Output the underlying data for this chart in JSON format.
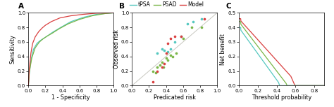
{
  "panel_a": {
    "label": "A",
    "xlabel": "1 - Specificity",
    "ylabel": "Sensitivity",
    "xlim": [
      0.0,
      1.0
    ],
    "ylim": [
      0.0,
      1.0
    ],
    "xticks": [
      0.0,
      0.2,
      0.4,
      0.6,
      0.8,
      1.0
    ],
    "yticks": [
      0.0,
      0.2,
      0.4,
      0.6,
      0.8,
      1.0
    ],
    "tpsa_fpr": [
      0,
      0.01,
      0.03,
      0.06,
      0.1,
      0.14,
      0.18,
      0.22,
      0.28,
      0.38,
      0.5,
      0.65,
      0.8,
      1.0
    ],
    "tpsa_tpr": [
      0,
      0.15,
      0.35,
      0.5,
      0.58,
      0.62,
      0.65,
      0.68,
      0.73,
      0.8,
      0.88,
      0.94,
      0.98,
      1.0
    ],
    "psad_fpr": [
      0,
      0.01,
      0.04,
      0.08,
      0.13,
      0.17,
      0.22,
      0.28,
      0.36,
      0.47,
      0.6,
      0.75,
      0.9,
      1.0
    ],
    "psad_tpr": [
      0,
      0.18,
      0.38,
      0.52,
      0.6,
      0.64,
      0.68,
      0.72,
      0.78,
      0.85,
      0.91,
      0.96,
      0.99,
      1.0
    ],
    "model_fpr": [
      0,
      0.01,
      0.03,
      0.05,
      0.08,
      0.12,
      0.16,
      0.2,
      0.27,
      0.37,
      0.5,
      0.65,
      0.8,
      1.0
    ],
    "model_tpr": [
      0,
      0.22,
      0.45,
      0.58,
      0.67,
      0.74,
      0.79,
      0.83,
      0.88,
      0.93,
      0.96,
      0.98,
      0.995,
      1.0
    ]
  },
  "panel_b": {
    "label": "B",
    "xlabel": "Predicated risk",
    "ylabel": "Observed risk",
    "xlim": [
      0.0,
      1.0
    ],
    "ylim": [
      0.0,
      1.0
    ],
    "xticks": [
      0.0,
      0.2,
      0.4,
      0.6,
      0.8,
      1.0
    ],
    "yticks": [
      0.0,
      0.2,
      0.4,
      0.6,
      0.8,
      1.0
    ],
    "tpsa_points": [
      [
        0.3,
        0.45
      ],
      [
        0.35,
        0.5
      ],
      [
        0.38,
        0.48
      ],
      [
        0.42,
        0.47
      ],
      [
        0.45,
        0.5
      ],
      [
        0.5,
        0.6
      ],
      [
        0.58,
        0.68
      ],
      [
        0.65,
        0.85
      ],
      [
        0.72,
        0.88
      ],
      [
        0.82,
        0.92
      ]
    ],
    "psad_points": [
      [
        0.25,
        0.2
      ],
      [
        0.28,
        0.18
      ],
      [
        0.3,
        0.25
      ],
      [
        0.33,
        0.28
      ],
      [
        0.35,
        0.32
      ],
      [
        0.37,
        0.25
      ],
      [
        0.4,
        0.38
      ],
      [
        0.42,
        0.35
      ],
      [
        0.45,
        0.42
      ],
      [
        0.48,
        0.4
      ],
      [
        0.52,
        0.45
      ],
      [
        0.6,
        0.65
      ],
      [
        0.7,
        0.8
      ],
      [
        0.82,
        0.8
      ]
    ],
    "model_points": [
      [
        0.25,
        0.05
      ],
      [
        0.3,
        0.2
      ],
      [
        0.35,
        0.25
      ],
      [
        0.38,
        0.3
      ],
      [
        0.4,
        0.45
      ],
      [
        0.42,
        0.58
      ],
      [
        0.45,
        0.65
      ],
      [
        0.5,
        0.68
      ],
      [
        0.58,
        0.68
      ],
      [
        0.85,
        0.92
      ]
    ]
  },
  "panel_c": {
    "label": "C",
    "xlabel": "Threshold probability",
    "ylabel": "Net benefit",
    "xlim": [
      0.0,
      0.9
    ],
    "ylim": [
      0.0,
      0.5
    ],
    "xticks": [
      0.0,
      0.2,
      0.4,
      0.6,
      0.8
    ],
    "yticks": [
      0.0,
      0.1,
      0.2,
      0.3,
      0.4,
      0.5
    ]
  },
  "legend": {
    "tpsa_label": "tPSA",
    "psad_label": "PSAD",
    "model_label": "Model"
  },
  "tpsa_color": "#55c8c0",
  "psad_color": "#7ab648",
  "model_color": "#d94040",
  "diag_color": "#c8c8c0",
  "bg_color": "#ffffff",
  "tick_fontsize": 5.0,
  "label_fontsize": 5.8,
  "panel_label_fontsize": 7.5,
  "legend_fontsize": 5.5,
  "lw": 0.9,
  "scatter_s": 7
}
